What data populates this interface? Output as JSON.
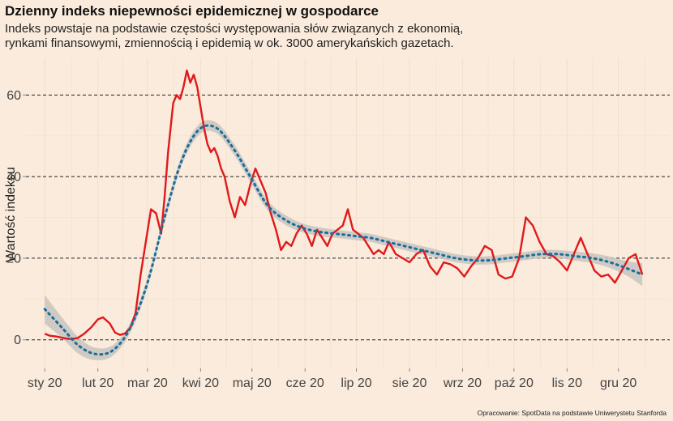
{
  "chart_data": {
    "type": "line",
    "title": "Dzienny indeks niepewności epidemicznej w gospodarce",
    "subtitle_lines": [
      "Indeks powstaje na podstawie częstości występowania słów związanych z ekonomią,",
      "rynkami finansowymi, zmiennością i epidemią w ok. 3000 amerykańskich gazetach."
    ],
    "caption": "Opracowanie: SpotData na podstawie Uniwerystetu Stanforda",
    "ylabel": "Wartość indeksu",
    "xlabel": "",
    "ylim": [
      -7,
      69
    ],
    "xlim": [
      "2019-12-21",
      "2020-12-31"
    ],
    "yticks": [
      0,
      20,
      40,
      60
    ],
    "ytick_labels": [
      "0",
      "20",
      "40",
      "60"
    ],
    "xticks": [
      "2020-01-01",
      "2020-02-01",
      "2020-03-01",
      "2020-04-01",
      "2020-05-01",
      "2020-06-01",
      "2020-07-01",
      "2020-08-01",
      "2020-09-01",
      "2020-10-01",
      "2020-11-01",
      "2020-12-01"
    ],
    "xtick_labels": [
      "sty 20",
      "lut 20",
      "mar 20",
      "kwi 20",
      "maj 20",
      "cze 20",
      "lip 20",
      "sie 20",
      "wrz 20",
      "paź 20",
      "lis 20",
      "gru 20"
    ],
    "grid": "dashed horizontal at y ticks, faint vertical grid",
    "colors": {
      "background": "#faebdc",
      "index_line": "#e0191a",
      "trend_line": "#1a6e9c",
      "confidence_band": "#c8c4c0",
      "grid_major": "#222222",
      "grid_minor": "#f2dfcc"
    },
    "series": [
      {
        "style": "solid red line",
        "x": [
          "2020-01-01",
          "2020-01-04",
          "2020-01-08",
          "2020-01-12",
          "2020-01-16",
          "2020-01-20",
          "2020-01-24",
          "2020-01-28",
          "2020-02-01",
          "2020-02-04",
          "2020-02-08",
          "2020-02-11",
          "2020-02-14",
          "2020-02-17",
          "2020-02-20",
          "2020-02-23",
          "2020-02-26",
          "2020-02-29",
          "2020-03-03",
          "2020-03-06",
          "2020-03-09",
          "2020-03-11",
          "2020-03-13",
          "2020-03-16",
          "2020-03-18",
          "2020-03-20",
          "2020-03-22",
          "2020-03-24",
          "2020-03-26",
          "2020-03-28",
          "2020-03-30",
          "2020-04-01",
          "2020-04-03",
          "2020-04-05",
          "2020-04-07",
          "2020-04-09",
          "2020-04-11",
          "2020-04-13",
          "2020-04-15",
          "2020-04-18",
          "2020-04-21",
          "2020-04-24",
          "2020-04-27",
          "2020-04-30",
          "2020-05-03",
          "2020-05-06",
          "2020-05-09",
          "2020-05-12",
          "2020-05-15",
          "2020-05-18",
          "2020-05-21",
          "2020-05-24",
          "2020-05-27",
          "2020-05-30",
          "2020-06-02",
          "2020-06-05",
          "2020-06-08",
          "2020-06-11",
          "2020-06-14",
          "2020-06-17",
          "2020-06-20",
          "2020-06-23",
          "2020-06-26",
          "2020-06-29",
          "2020-07-02",
          "2020-07-05",
          "2020-07-08",
          "2020-07-11",
          "2020-07-14",
          "2020-07-17",
          "2020-07-20",
          "2020-07-24",
          "2020-07-28",
          "2020-08-01",
          "2020-08-05",
          "2020-08-09",
          "2020-08-13",
          "2020-08-17",
          "2020-08-21",
          "2020-08-25",
          "2020-08-29",
          "2020-09-02",
          "2020-09-06",
          "2020-09-10",
          "2020-09-14",
          "2020-09-18",
          "2020-09-22",
          "2020-09-26",
          "2020-09-30",
          "2020-10-04",
          "2020-10-08",
          "2020-10-12",
          "2020-10-16",
          "2020-10-20",
          "2020-10-24",
          "2020-10-28",
          "2020-11-01",
          "2020-11-05",
          "2020-11-09",
          "2020-11-13",
          "2020-11-17",
          "2020-11-21",
          "2020-11-25",
          "2020-11-29",
          "2020-12-03",
          "2020-12-07",
          "2020-12-11",
          "2020-12-15"
        ],
        "y": [
          1.5,
          1.0,
          0.8,
          0.4,
          0.2,
          0.4,
          1.5,
          3.0,
          5.0,
          5.5,
          4.0,
          1.8,
          1.2,
          1.6,
          3.0,
          6.5,
          16.0,
          24.0,
          32.0,
          31.0,
          26.0,
          35.0,
          46.0,
          58.0,
          60.0,
          59.0,
          62.0,
          66.0,
          63.0,
          65.0,
          62.0,
          57.0,
          52.0,
          48.0,
          46.0,
          47.0,
          45.0,
          42.0,
          40.0,
          34.0,
          30.0,
          35.0,
          33.0,
          38.0,
          42.0,
          39.0,
          36.0,
          31.0,
          27.0,
          22.0,
          24.0,
          23.0,
          26.0,
          28.0,
          26.0,
          23.0,
          27.0,
          25.0,
          23.0,
          26.0,
          27.0,
          28.0,
          32.0,
          27.0,
          26.0,
          25.0,
          23.0,
          21.0,
          22.0,
          21.0,
          24.0,
          21.0,
          20.0,
          19.0,
          21.0,
          22.0,
          18.0,
          16.0,
          19.0,
          18.5,
          17.5,
          15.5,
          18.0,
          20.0,
          23.0,
          22.0,
          16.0,
          15.0,
          15.5,
          20.0,
          30.0,
          28.0,
          24.0,
          21.0,
          20.5,
          19.0,
          17.0,
          21.0,
          25.0,
          21.0,
          17.0,
          15.5,
          16.0,
          14.0,
          17.0,
          20.0,
          21.0,
          16.0
        ]
      },
      {
        "style": "dotted blue smoothed trend with grey confidence band",
        "x": [
          "2020-01-01",
          "2020-01-11",
          "2020-01-21",
          "2020-01-31",
          "2020-02-10",
          "2020-02-20",
          "2020-03-01",
          "2020-03-11",
          "2020-03-21",
          "2020-03-31",
          "2020-04-10",
          "2020-04-20",
          "2020-04-30",
          "2020-05-10",
          "2020-05-20",
          "2020-05-30",
          "2020-06-09",
          "2020-06-19",
          "2020-06-29",
          "2020-07-09",
          "2020-07-19",
          "2020-07-29",
          "2020-08-08",
          "2020-08-18",
          "2020-08-28",
          "2020-09-07",
          "2020-09-17",
          "2020-09-27",
          "2020-10-07",
          "2020-10-17",
          "2020-10-27",
          "2020-11-06",
          "2020-11-16",
          "2020-11-26",
          "2020-12-06",
          "2020-12-15"
        ],
        "y": [
          7.5,
          3.0,
          -1.5,
          -3.5,
          -2.5,
          3.0,
          14.0,
          30.0,
          44.0,
          51.5,
          52.0,
          47.0,
          40.0,
          33.0,
          29.5,
          27.5,
          26.5,
          26.0,
          25.5,
          25.0,
          24.0,
          23.0,
          22.0,
          21.0,
          20.0,
          19.5,
          19.5,
          20.0,
          20.5,
          21.0,
          21.0,
          20.5,
          20.0,
          19.0,
          17.5,
          16.0
        ],
        "band_halfwidth": [
          3.5,
          2.5,
          2.0,
          1.5,
          1.3,
          1.2,
          1.2,
          1.2,
          1.2,
          1.3,
          1.3,
          1.3,
          1.3,
          1.2,
          1.2,
          1.1,
          1.1,
          1.0,
          1.0,
          1.0,
          1.0,
          1.0,
          1.0,
          1.0,
          1.0,
          1.0,
          1.0,
          1.0,
          1.0,
          1.0,
          1.0,
          1.1,
          1.2,
          1.4,
          1.8,
          2.8
        ]
      }
    ]
  }
}
